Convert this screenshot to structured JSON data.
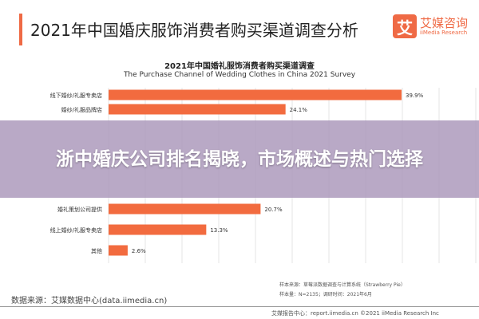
{
  "header": {
    "title": "2021年中国婚庆服饰消费者购买渠道调查分析",
    "logo_mark": "艾",
    "logo_cn": "艾媒咨询",
    "logo_en": "iiMedia Research"
  },
  "chart_data": {
    "type": "bar",
    "title": "2021年中国婚礼服饰消费者购买渠道调查",
    "subtitle": "The Purchase Channel of Wedding Clothes in China 2021 Survey",
    "categories": [
      "线下婚纱/礼服专卖店",
      "婚纱/礼服品牌店",
      "婚礼策划公司提供",
      "线上婚纱/礼服专卖店",
      "其他"
    ],
    "values": [
      39.9,
      24.1,
      20.7,
      13.3,
      2.6
    ],
    "labels": [
      "39.9%",
      "24.1%",
      "20.7%",
      "13.3%",
      "2.6%"
    ],
    "xlim": [
      0,
      40
    ],
    "bar_color": "#f26b3f",
    "orientation": "horizontal"
  },
  "banner": {
    "text": "浙中婚庆公司排名揭晓，市场概述与热门选择"
  },
  "footer": {
    "source": "数据来源：艾媒数据中心(data.iimedia.cn)",
    "sample_source": "样本来源：草莓派数据调查与计算系统（Strawberry Pie）",
    "sample_size": "样本量：N=2135；调研时间：2021年6月",
    "report": "艾媒报告中心：report.iimedia.cn ©2021 iiMedia Research Inc"
  }
}
